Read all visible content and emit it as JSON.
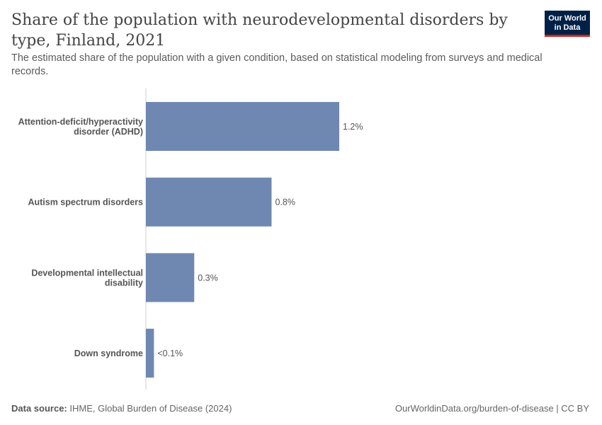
{
  "header": {
    "title": "Share of the population with neurodevelopmental disorders by type, Finland, 2021",
    "subtitle": "The estimated share of the population with a given condition, based on statistical modeling from surveys and medical records."
  },
  "logo": {
    "line1": "Our World",
    "line2": "in Data",
    "bg_color": "#002147",
    "accent_color": "#ce261e"
  },
  "chart_data": {
    "type": "bar",
    "orientation": "horizontal",
    "title": "Share of the population with neurodevelopmental disorders by type, Finland, 2021",
    "subtitle": "The estimated share of the population with a given condition, based on statistical modeling from surveys and medical records.",
    "categories": [
      [
        "Attention-deficit/hyperactivity",
        "disorder (ADHD)"
      ],
      [
        "Autism spectrum disorders"
      ],
      [
        "Developmental intellectual",
        "disability"
      ],
      [
        "Down syndrome"
      ]
    ],
    "values": [
      1.2,
      0.78,
      0.3,
      0.05
    ],
    "value_labels": [
      "1.2%",
      "0.8%",
      "0.3%",
      "<0.1%"
    ],
    "unit": "%",
    "xlim": [
      0,
      1.2
    ],
    "bar_color": "#6f88b1",
    "grid": false,
    "legend": "none"
  },
  "footer": {
    "source_label": "Data source:",
    "source_text": "IHME, Global Burden of Disease (2024)",
    "url_text": "OurWorldinData.org/burden-of-disease | CC BY"
  }
}
